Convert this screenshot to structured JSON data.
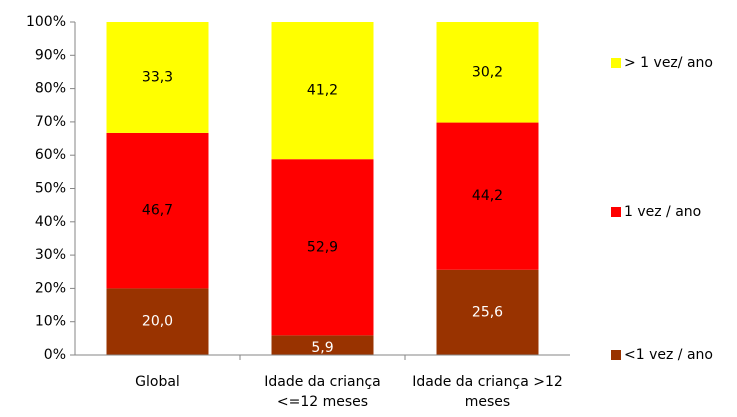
{
  "chart_data": {
    "type": "stacked_bar",
    "categories": [
      "Global",
      "Idade da criança <=12 meses",
      "Idade da criança >12 meses"
    ],
    "series": [
      {
        "name": "<1 vez / ano",
        "color": "#993300",
        "values": [
          20.0,
          5.9,
          25.6
        ],
        "value_labels": [
          "20,0",
          "5,9",
          "25,6"
        ]
      },
      {
        "name": "1 vez / ano",
        "color": "#ff0000",
        "values": [
          46.7,
          52.9,
          44.2
        ],
        "value_labels": [
          "46,7",
          "52,9",
          "44,2"
        ]
      },
      {
        "name": "> 1 vez/ ano",
        "color": "#ffff00",
        "values": [
          33.3,
          41.2,
          30.2
        ],
        "value_labels": [
          "33,3",
          "41,2",
          "30,2"
        ]
      }
    ],
    "ylim": [
      0,
      100
    ],
    "yticks": [
      {
        "value": 0,
        "label": "0%"
      },
      {
        "value": 10,
        "label": "10%"
      },
      {
        "value": 20,
        "label": "20%"
      },
      {
        "value": 30,
        "label": "30%"
      },
      {
        "value": 40,
        "label": "40%"
      },
      {
        "value": 50,
        "label": "50%"
      },
      {
        "value": 60,
        "label": "60%"
      },
      {
        "value": 70,
        "label": "70%"
      },
      {
        "value": 80,
        "label": "80%"
      },
      {
        "value": 90,
        "label": "90%"
      },
      {
        "value": 100,
        "label": "100%"
      }
    ],
    "grid": false,
    "legend": "right"
  }
}
